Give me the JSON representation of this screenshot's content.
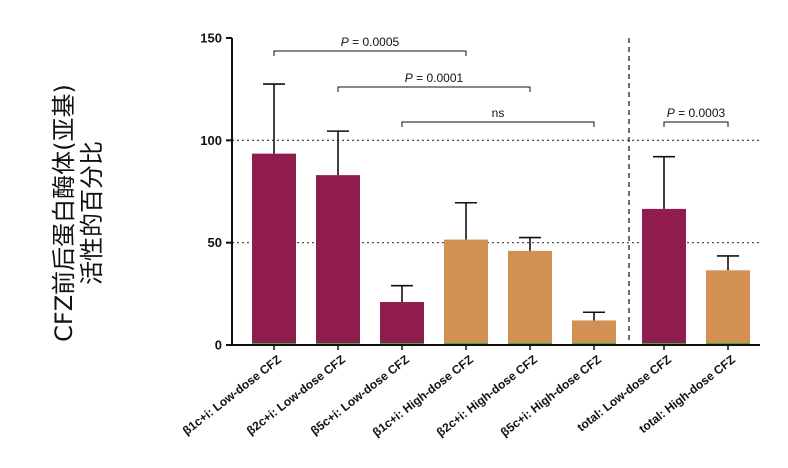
{
  "chart_data": {
    "type": "bar",
    "title": "",
    "ylabel_lines": [
      "CFZ前后蛋白酶体(亚基)",
      "活性的百分比"
    ],
    "ylim": [
      0,
      150
    ],
    "yticks": [
      0,
      50,
      100,
      150
    ],
    "dotted_gridlines_at": [
      50,
      100
    ],
    "categories": [
      "β1c+i: Low-dose CFZ",
      "β2c+i: Low-dose CFZ",
      "β5c+i: Low-dose CFZ",
      "β1c+i: High-dose CFZ",
      "β2c+i: High-dose CFZ",
      "β5c+i: High-dose CFZ",
      "total: Low-dose CFZ",
      "total: High-dose CFZ"
    ],
    "values": [
      93.5,
      83,
      21,
      51.5,
      46,
      12,
      66.5,
      36.5
    ],
    "error_upper": [
      127.5,
      104.5,
      29,
      69.5,
      52.5,
      16,
      92,
      43.5
    ],
    "dose_group": [
      "low",
      "low",
      "low",
      "high",
      "high",
      "high",
      "low",
      "high"
    ],
    "colors": {
      "low": "#931C4F",
      "high": "#D39055"
    },
    "vertical_divider_after_index": 5,
    "comparisons": [
      {
        "from": 0,
        "to": 3,
        "label_prefix": "P",
        "label_value": " = 0.0005"
      },
      {
        "from": 1,
        "to": 4,
        "label_prefix": "P",
        "label_value": " = 0.0001"
      },
      {
        "from": 2,
        "to": 5,
        "label_prefix": "",
        "label_value": "ns"
      },
      {
        "from": 6,
        "to": 7,
        "label_prefix": "P",
        "label_value": " = 0.0003"
      }
    ]
  }
}
